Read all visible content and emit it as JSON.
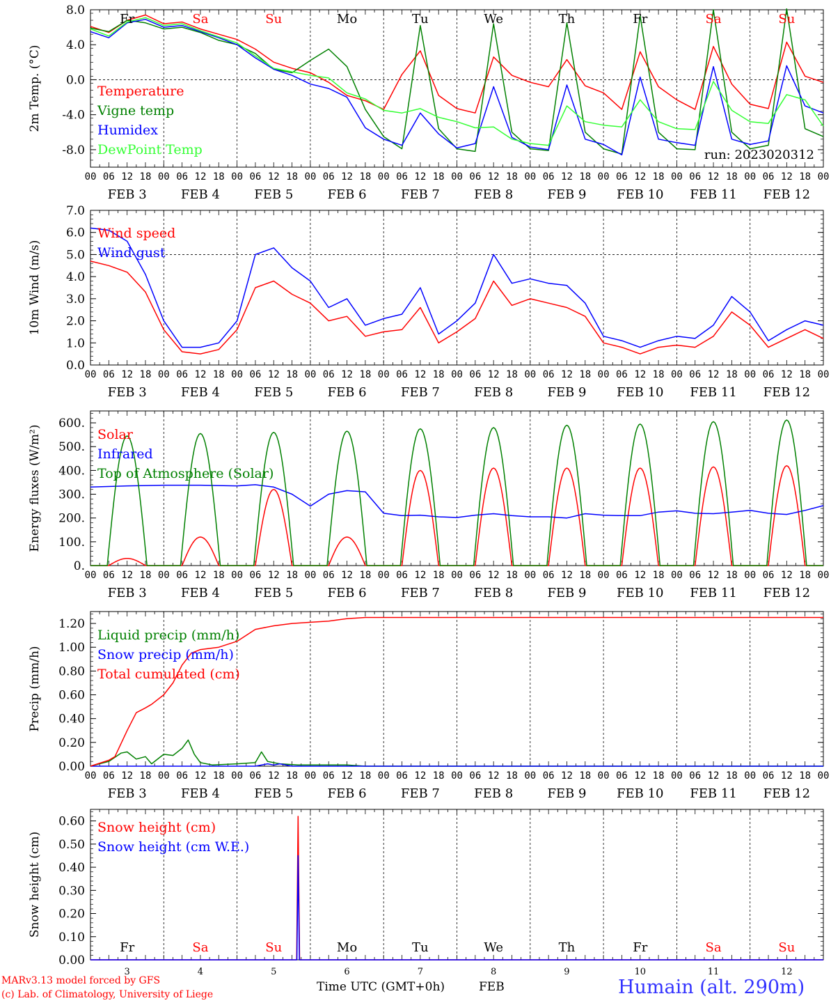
{
  "footer": {
    "credit1": "MARv3.13 model forced by GFS",
    "credit2": "(c) Lab. of Climatology, University of Liege",
    "xlabel": "Time UTC (GMT+0h)",
    "month": "FEB",
    "station": "Humain (alt. 290m)"
  },
  "days": {
    "names": [
      "Fr",
      "Sa",
      "Su",
      "Mo",
      "Tu",
      "We",
      "Th",
      "Fr",
      "Sa",
      "Su"
    ],
    "weekend": [
      false,
      true,
      true,
      false,
      false,
      false,
      false,
      false,
      true,
      true
    ],
    "dates": [
      "3",
      "4",
      "5",
      "6",
      "7",
      "8",
      "9",
      "10",
      "11",
      "12"
    ],
    "feb_labels": [
      "FEB  3",
      "FEB  4",
      "FEB  5",
      "FEB  6",
      "FEB  7",
      "FEB  8",
      "FEB  9",
      "FEB 10",
      "FEB 11",
      "FEB 12"
    ],
    "hour_labels": [
      "00",
      "06",
      "12",
      "18"
    ],
    "end_label": "00"
  },
  "colors": {
    "red": "#ff0000",
    "green": "#008000",
    "blue": "#0000ff",
    "light_green": "#33ff33",
    "weekend": "#ff0000",
    "weekday": "#000000",
    "station": "#3333ff"
  },
  "chart_data": [
    {
      "type": "line",
      "ylabel": "2m Temp. (°C)",
      "ylim": [
        -10,
        8
      ],
      "yticks": [
        -8,
        -4,
        0,
        4,
        8
      ],
      "ytick_labels": [
        "-8.0",
        "-4.0",
        "0.0",
        "4.0",
        "8.0"
      ],
      "run_label": "run: 2023020312",
      "x_unit": "hours since FEB 3 00 UTC",
      "series": [
        {
          "name": "Temperature",
          "color": "#ff0000",
          "x": [
            0,
            6,
            12,
            18,
            24,
            30,
            36,
            42,
            48,
            54,
            60,
            66,
            72,
            78,
            84,
            90,
            96,
            102,
            108,
            114,
            120,
            126,
            132,
            138,
            144,
            150,
            156,
            162,
            168,
            174,
            180,
            186,
            192,
            198,
            204,
            210,
            216,
            222,
            228,
            234,
            240
          ],
          "y": [
            6.1,
            5.4,
            6.8,
            7.4,
            6.4,
            6.6,
            5.8,
            5.2,
            4.6,
            3.5,
            2.0,
            1.3,
            0.8,
            -0.3,
            -1.8,
            -2.4,
            -3.4,
            0.6,
            3.3,
            -1.8,
            -3.3,
            -3.8,
            2.6,
            0.5,
            -0.3,
            -0.8,
            2.3,
            -0.7,
            -1.5,
            -3.4,
            3.2,
            -0.8,
            -2.3,
            -3.4,
            3.8,
            -0.5,
            -2.8,
            -3.3,
            4.3,
            0.4,
            -0.3
          ]
        },
        {
          "name": "Vigne temp",
          "color": "#008000",
          "x": [
            0,
            6,
            12,
            18,
            24,
            30,
            36,
            42,
            48,
            54,
            60,
            66,
            72,
            78,
            84,
            90,
            96,
            102,
            108,
            114,
            120,
            126,
            132,
            138,
            144,
            150,
            156,
            162,
            168,
            174,
            180,
            186,
            192,
            198,
            204,
            210,
            216,
            222,
            228,
            234,
            240
          ],
          "y": [
            5.9,
            5.5,
            6.8,
            6.5,
            5.8,
            6.0,
            5.4,
            4.5,
            4.0,
            3.0,
            1.2,
            0.8,
            2.2,
            3.5,
            1.5,
            -3.4,
            -6.5,
            -7.9,
            6.2,
            -5.6,
            -7.9,
            -8.2,
            6.4,
            -6.0,
            -7.9,
            -8.1,
            6.5,
            -6.0,
            -7.9,
            -8.5,
            7.3,
            -6.0,
            -7.9,
            -8.0,
            8.0,
            -6.0,
            -7.9,
            -7.5,
            8.1,
            -5.6,
            -6.5
          ]
        },
        {
          "name": "Humidex",
          "color": "#0000ff",
          "x": [
            0,
            6,
            12,
            18,
            24,
            30,
            36,
            42,
            48,
            54,
            60,
            66,
            72,
            78,
            84,
            90,
            96,
            102,
            108,
            114,
            120,
            126,
            132,
            138,
            144,
            150,
            156,
            162,
            168,
            174,
            180,
            186,
            192,
            198,
            204,
            210,
            216,
            222,
            228,
            234,
            240
          ],
          "y": [
            5.5,
            4.8,
            6.5,
            6.9,
            6.0,
            6.2,
            5.5,
            4.8,
            4.0,
            2.5,
            1.2,
            0.5,
            -0.5,
            -1.0,
            -2.0,
            -5.5,
            -6.8,
            -7.5,
            -3.8,
            -6.2,
            -7.8,
            -7.3,
            -0.8,
            -6.6,
            -7.7,
            -8.0,
            -0.6,
            -6.8,
            -7.4,
            -8.6,
            0.3,
            -6.8,
            -7.2,
            -7.5,
            1.5,
            -6.8,
            -7.4,
            -7.0,
            1.6,
            -3.0,
            -3.8
          ]
        },
        {
          "name": "DewPoint Temp",
          "color": "#33ff33",
          "x": [
            0,
            6,
            12,
            18,
            24,
            30,
            36,
            42,
            48,
            54,
            60,
            66,
            72,
            78,
            84,
            90,
            96,
            102,
            108,
            114,
            120,
            126,
            132,
            138,
            144,
            150,
            156,
            162,
            168,
            174,
            180,
            186,
            192,
            198,
            204,
            210,
            216,
            222,
            228,
            234,
            240
          ],
          "y": [
            5.8,
            5.0,
            6.6,
            7.1,
            6.2,
            6.4,
            5.6,
            4.9,
            4.2,
            2.7,
            1.3,
            0.9,
            0.5,
            0.2,
            -1.5,
            -2.2,
            -3.5,
            -3.8,
            -3.3,
            -4.3,
            -4.8,
            -5.5,
            -5.4,
            -6.8,
            -7.3,
            -7.5,
            -3.0,
            -4.8,
            -5.2,
            -5.4,
            -2.3,
            -4.8,
            -5.6,
            -5.7,
            -0.2,
            -3.5,
            -4.8,
            -5.0,
            -1.7,
            -2.3,
            -5.3
          ]
        }
      ]
    },
    {
      "type": "line",
      "ylabel": "10m Wind (m/s)",
      "ylim": [
        0,
        7
      ],
      "yticks": [
        0,
        1,
        2,
        3,
        4,
        5,
        6,
        7
      ],
      "ytick_labels": [
        "0.0",
        "1.0",
        "2.0",
        "3.0",
        "4.0",
        "5.0",
        "6.0",
        "7.0"
      ],
      "series": [
        {
          "name": "Wind speed",
          "color": "#ff0000",
          "x": [
            0,
            6,
            12,
            18,
            24,
            30,
            36,
            42,
            48,
            54,
            60,
            66,
            72,
            78,
            84,
            90,
            96,
            102,
            108,
            114,
            120,
            126,
            132,
            138,
            144,
            150,
            156,
            162,
            168,
            174,
            180,
            186,
            192,
            198,
            204,
            210,
            216,
            222,
            228,
            234,
            240
          ],
          "y": [
            4.7,
            4.5,
            4.2,
            3.3,
            1.6,
            0.6,
            0.5,
            0.7,
            1.6,
            3.5,
            3.8,
            3.2,
            2.8,
            2.0,
            2.2,
            1.3,
            1.5,
            1.6,
            2.6,
            1.0,
            1.5,
            2.1,
            3.8,
            2.7,
            3.0,
            2.8,
            2.6,
            2.2,
            1.0,
            0.8,
            0.5,
            0.8,
            0.9,
            0.8,
            1.3,
            2.4,
            1.8,
            0.8,
            1.2,
            1.6,
            1.2
          ]
        },
        {
          "name": "Wind gust",
          "color": "#0000ff",
          "x": [
            0,
            6,
            12,
            18,
            24,
            30,
            36,
            42,
            48,
            54,
            60,
            66,
            72,
            78,
            84,
            90,
            96,
            102,
            108,
            114,
            120,
            126,
            132,
            138,
            144,
            150,
            156,
            162,
            168,
            174,
            180,
            186,
            192,
            198,
            204,
            210,
            216,
            222,
            228,
            234,
            240
          ],
          "y": [
            6.2,
            6.1,
            5.6,
            4.1,
            2.0,
            0.8,
            0.8,
            1.0,
            2.0,
            5.0,
            5.3,
            4.4,
            3.8,
            2.6,
            3.0,
            1.8,
            2.1,
            2.3,
            3.5,
            1.4,
            2.0,
            2.8,
            5.0,
            3.7,
            3.9,
            3.7,
            3.6,
            2.8,
            1.3,
            1.1,
            0.8,
            1.1,
            1.3,
            1.2,
            1.8,
            3.1,
            2.4,
            1.1,
            1.6,
            2.0,
            1.8
          ]
        }
      ]
    },
    {
      "type": "line",
      "ylabel": "Energy fluxes (W/m²)",
      "ylim": [
        0,
        650
      ],
      "yticks": [
        0,
        100,
        200,
        300,
        400,
        500,
        600
      ],
      "ytick_labels": [
        "0.",
        "100.",
        "200.",
        "300.",
        "400.",
        "500.",
        "600."
      ],
      "series": [
        {
          "name": "Solar",
          "color": "#ff0000",
          "peaks": [
            {
              "x": 12,
              "y": 30
            },
            {
              "x": 36,
              "y": 120
            },
            {
              "x": 60,
              "y": 320
            },
            {
              "x": 84,
              "y": 120
            },
            {
              "x": 108,
              "y": 400
            },
            {
              "x": 132,
              "y": 410
            },
            {
              "x": 156,
              "y": 410
            },
            {
              "x": 180,
              "y": 410
            },
            {
              "x": 204,
              "y": 415
            },
            {
              "x": 228,
              "y": 420
            }
          ]
        },
        {
          "name": "Infrared",
          "color": "#0000ff",
          "x": [
            0,
            12,
            24,
            36,
            48,
            54,
            60,
            66,
            72,
            78,
            84,
            90,
            96,
            102,
            108,
            114,
            120,
            126,
            132,
            138,
            144,
            150,
            156,
            162,
            168,
            174,
            180,
            186,
            192,
            198,
            204,
            210,
            216,
            222,
            228,
            234,
            240
          ],
          "y": [
            330,
            335,
            338,
            338,
            335,
            340,
            330,
            300,
            250,
            300,
            315,
            310,
            220,
            210,
            212,
            205,
            202,
            212,
            218,
            210,
            205,
            205,
            200,
            218,
            212,
            210,
            210,
            225,
            230,
            220,
            218,
            225,
            232,
            220,
            215,
            232,
            252
          ]
        },
        {
          "name": "Top of Atmosphere (Solar)",
          "color": "#008000",
          "peaks": [
            {
              "x": 12,
              "y": 545
            },
            {
              "x": 36,
              "y": 555
            },
            {
              "x": 60,
              "y": 560
            },
            {
              "x": 84,
              "y": 565
            },
            {
              "x": 108,
              "y": 575
            },
            {
              "x": 132,
              "y": 580
            },
            {
              "x": 156,
              "y": 590
            },
            {
              "x": 180,
              "y": 595
            },
            {
              "x": 204,
              "y": 605
            },
            {
              "x": 228,
              "y": 612
            }
          ]
        }
      ]
    },
    {
      "type": "line",
      "ylabel": "Precip (mm/h)",
      "ylim": [
        0,
        1.3
      ],
      "yticks": [
        0,
        0.2,
        0.4,
        0.6,
        0.8,
        1.0,
        1.2
      ],
      "ytick_labels": [
        "0.00",
        "0.20",
        "0.40",
        "0.60",
        "0.80",
        "1.00",
        "1.20"
      ],
      "series": [
        {
          "name": "Liquid precip (mm/h)",
          "color": "#008000",
          "x": [
            0,
            6,
            10,
            12,
            15,
            18,
            20,
            24,
            27,
            30,
            32,
            34,
            36,
            40,
            48,
            54,
            56,
            58,
            62,
            68,
            76,
            84,
            90,
            240
          ],
          "y": [
            0.0,
            0.04,
            0.11,
            0.12,
            0.06,
            0.08,
            0.02,
            0.1,
            0.09,
            0.15,
            0.22,
            0.1,
            0.03,
            0.01,
            0.02,
            0.03,
            0.12,
            0.04,
            0.02,
            0.01,
            0.01,
            0.01,
            0.0,
            0.0
          ]
        },
        {
          "name": "Snow precip (mm/h)",
          "color": "#0000ff",
          "x": [
            0,
            54,
            58,
            60,
            62,
            66,
            240
          ],
          "y": [
            0.0,
            0.0,
            0.02,
            0.01,
            0.02,
            0.0,
            0.0
          ]
        },
        {
          "name": "Total cumulated (cm)",
          "color": "#ff0000",
          "x": [
            0,
            6,
            8,
            12,
            15,
            18,
            20,
            24,
            27,
            30,
            33,
            36,
            42,
            48,
            54,
            60,
            66,
            72,
            78,
            84,
            90,
            240
          ],
          "y": [
            0.0,
            0.05,
            0.08,
            0.3,
            0.45,
            0.49,
            0.52,
            0.6,
            0.7,
            0.85,
            0.95,
            0.98,
            1.0,
            1.05,
            1.15,
            1.18,
            1.2,
            1.21,
            1.22,
            1.24,
            1.25,
            1.25
          ]
        }
      ]
    },
    {
      "type": "line",
      "ylabel": "Snow height (cm)",
      "ylim": [
        0,
        0.65
      ],
      "yticks": [
        0,
        0.1,
        0.2,
        0.3,
        0.4,
        0.5,
        0.6
      ],
      "ytick_labels": [
        "0.00",
        "0.10",
        "0.20",
        "0.30",
        "0.40",
        "0.50",
        "0.60"
      ],
      "series": [
        {
          "name": "Snow height (cm)",
          "color": "#ff0000",
          "x": [
            0,
            67.5,
            68,
            68.5,
            240
          ],
          "y": [
            0,
            0,
            0.62,
            0,
            0
          ]
        },
        {
          "name": "Snow height (cm W.E.)",
          "color": "#0000ff",
          "x": [
            0,
            67.6,
            68,
            68.4,
            240
          ],
          "y": [
            0,
            0,
            0.45,
            0,
            0
          ]
        }
      ]
    }
  ]
}
